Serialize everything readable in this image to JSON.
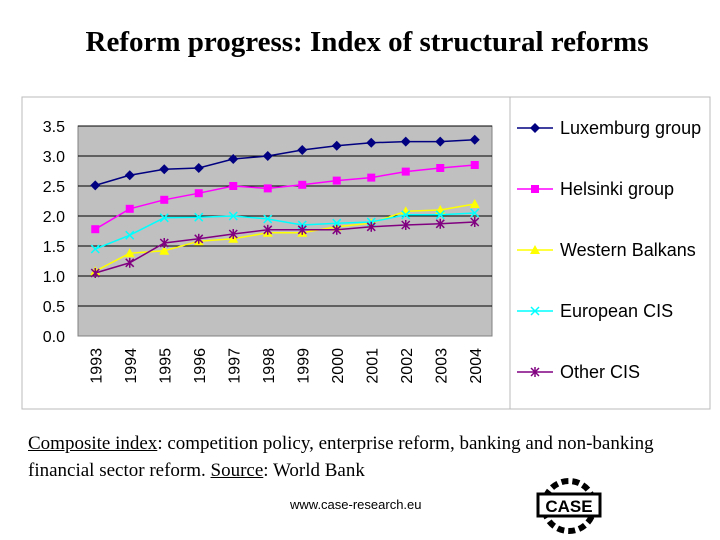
{
  "title": "Reform progress: Index of structural reforms",
  "caption": {
    "part1": "Composite index",
    "part2": ": competition policy, enterprise reform, banking and non-banking financial sector reform. ",
    "part3": "Source",
    "part4": ":  World Bank"
  },
  "url": "www.case-research.eu",
  "logo_text": "CASE",
  "chart_data": {
    "type": "line",
    "title": "",
    "xlabel": "",
    "ylabel": "",
    "ylim": [
      0,
      3.5
    ],
    "yticks": [
      "3.5",
      "3.0",
      "2.5",
      "2.0",
      "1.5",
      "1.0",
      "0.5",
      "0.0"
    ],
    "x": [
      "1993",
      "1994",
      "1995",
      "1996",
      "1997",
      "1998",
      "1999",
      "2000",
      "2001",
      "2002",
      "2003",
      "2004"
    ],
    "grid": "horizontal",
    "legend_position": "right",
    "series": [
      {
        "name": "Luxemburg group",
        "color": "#000080",
        "marker": "diamond",
        "values": [
          2.51,
          2.68,
          2.78,
          2.8,
          2.95,
          3.0,
          3.1,
          3.17,
          3.22,
          3.24,
          3.24,
          3.27
        ]
      },
      {
        "name": "Helsinki group",
        "color": "#ff00ff",
        "marker": "square",
        "values": [
          1.78,
          2.12,
          2.27,
          2.38,
          2.5,
          2.46,
          2.52,
          2.59,
          2.64,
          2.74,
          2.8,
          2.85
        ]
      },
      {
        "name": "Western Balkans",
        "color": "#ffff00",
        "marker": "triangle",
        "values": [
          1.08,
          1.38,
          1.42,
          1.58,
          1.62,
          1.72,
          1.72,
          1.82,
          1.88,
          2.08,
          2.1,
          2.2
        ]
      },
      {
        "name": "European CIS",
        "color": "#00ffff",
        "marker": "x",
        "values": [
          1.45,
          1.68,
          1.97,
          1.98,
          2.0,
          1.95,
          1.85,
          1.88,
          1.9,
          2.02,
          2.02,
          2.05
        ]
      },
      {
        "name": "Other CIS",
        "color": "#800080",
        "marker": "star",
        "values": [
          1.05,
          1.22,
          1.55,
          1.62,
          1.7,
          1.77,
          1.77,
          1.77,
          1.82,
          1.85,
          1.87,
          1.9
        ]
      }
    ]
  }
}
